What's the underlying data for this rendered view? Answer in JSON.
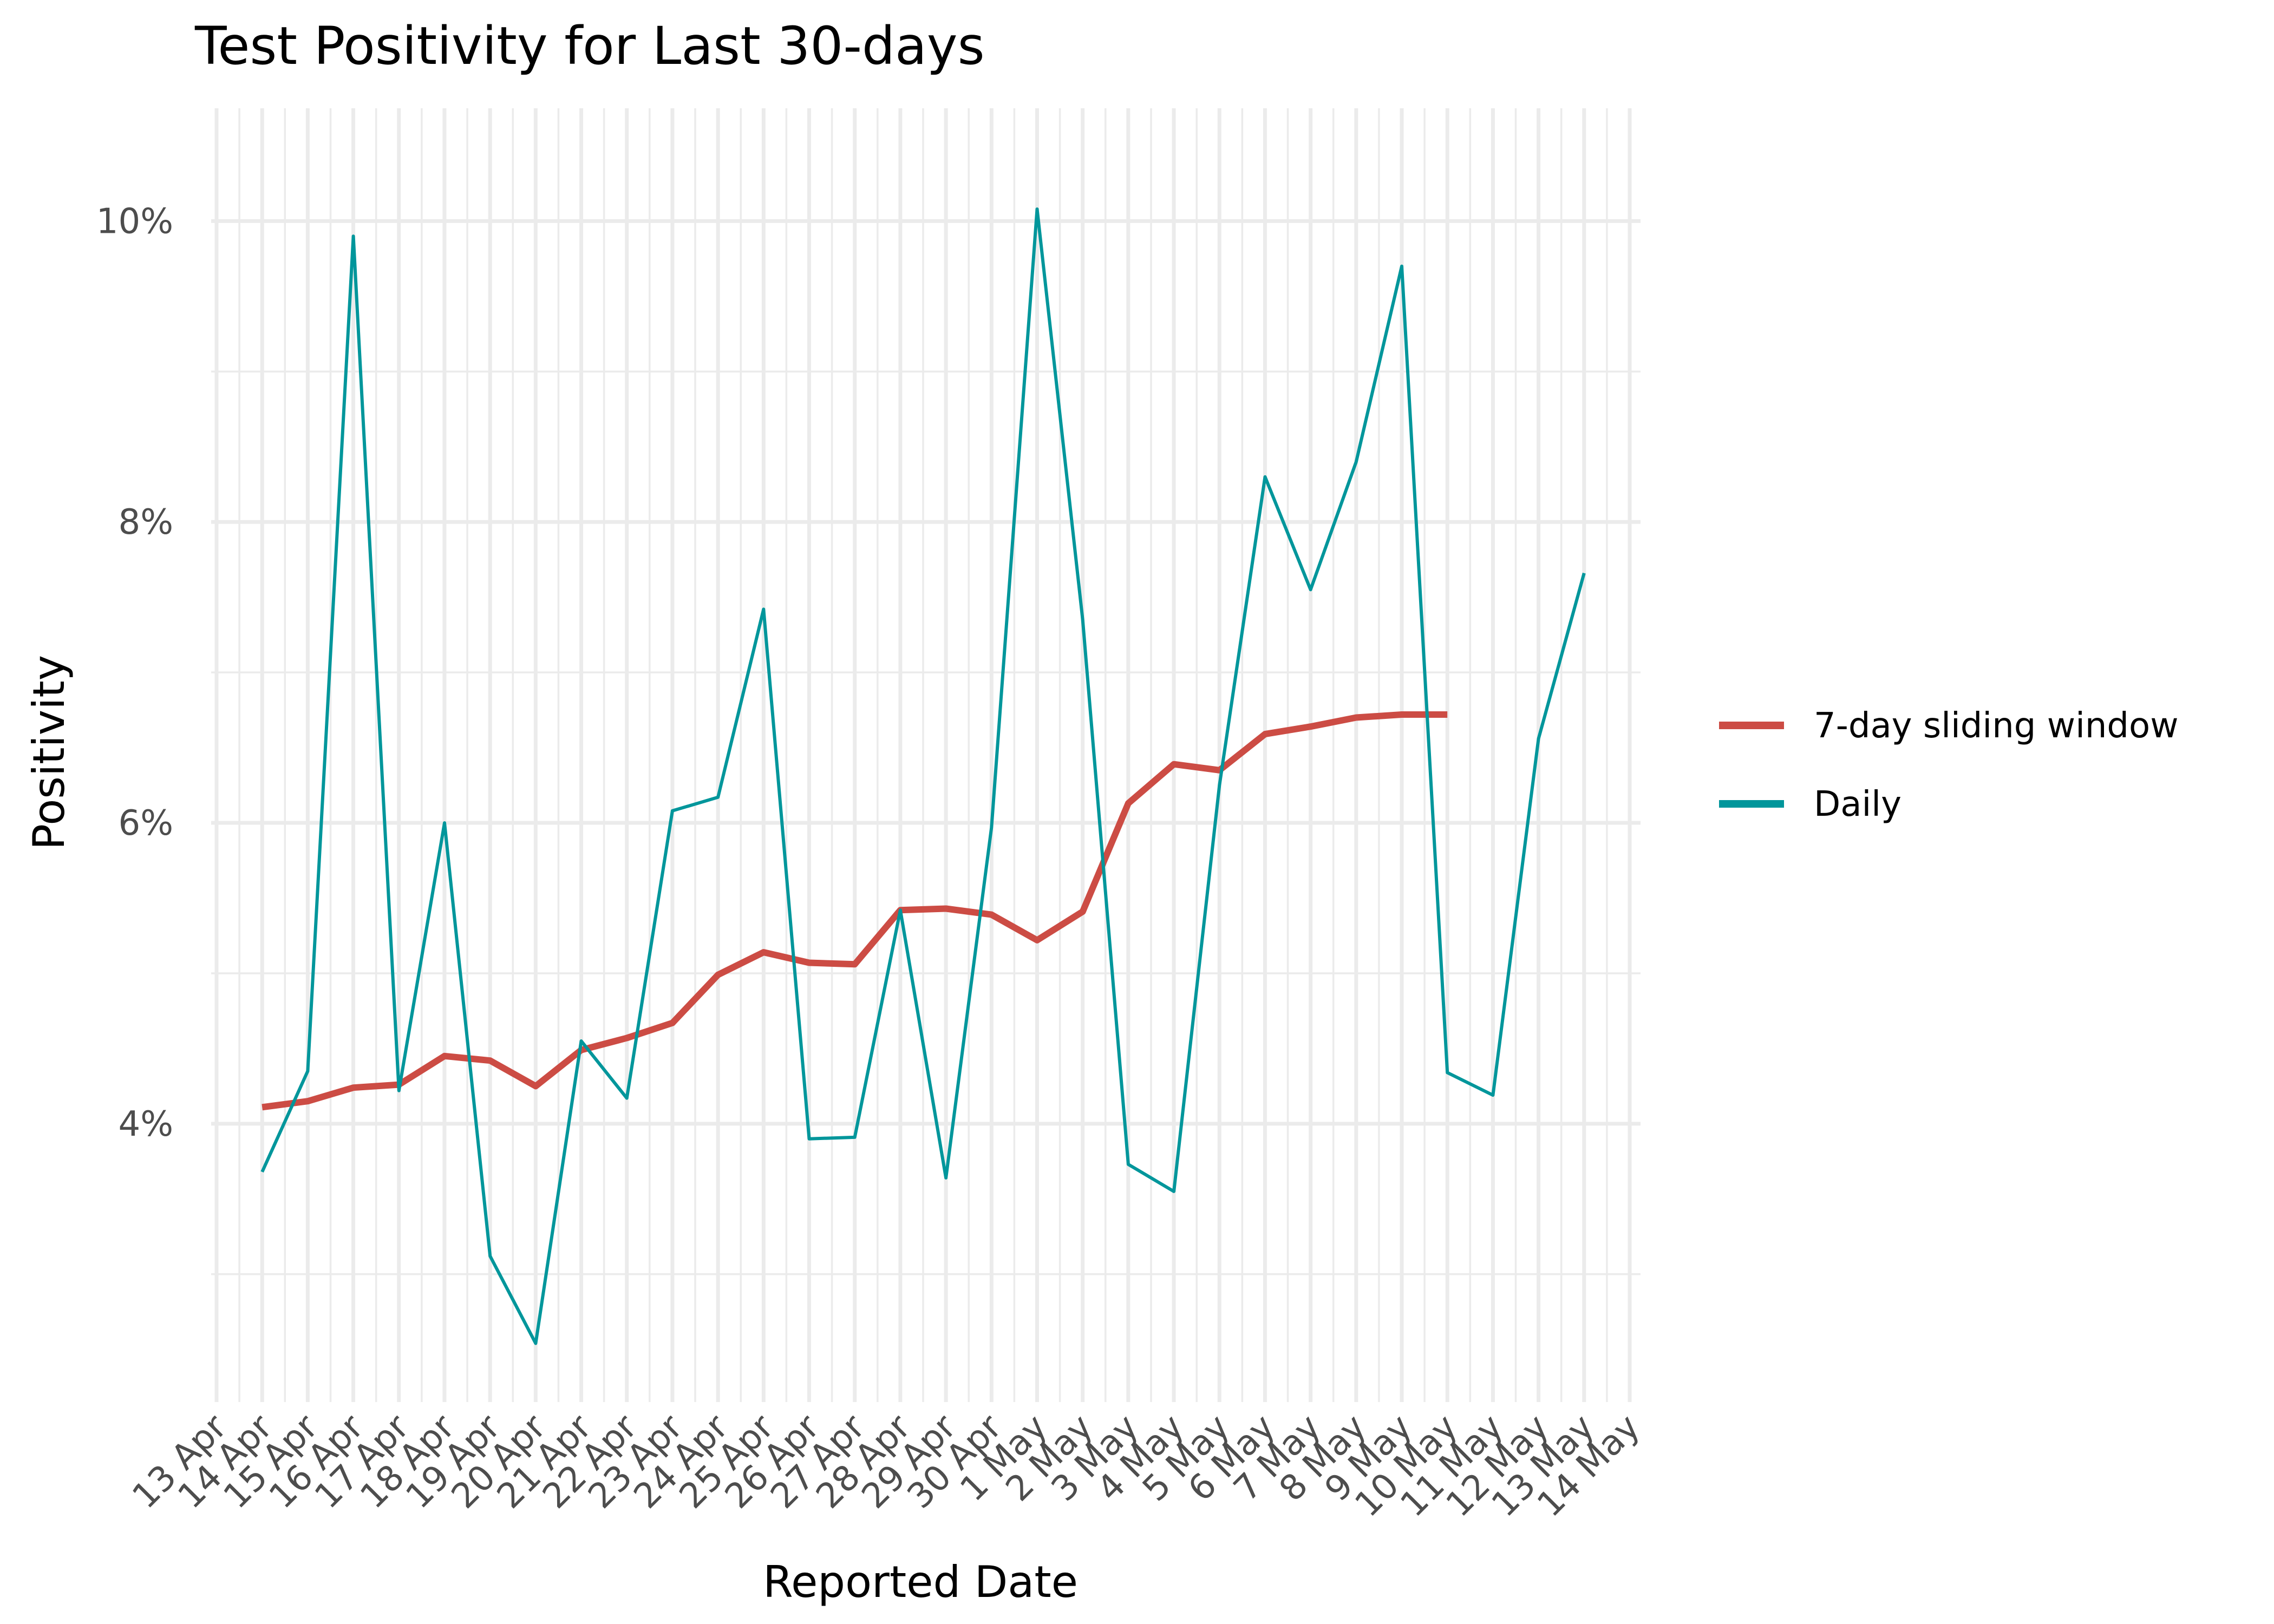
{
  "chart_data": {
    "type": "line",
    "title": "Test Positivity for Last 30-days",
    "xlabel": "Reported Date",
    "ylabel": "Positivity",
    "x": [
      "13 Apr",
      "14 Apr",
      "15 Apr",
      "16 Apr",
      "17 Apr",
      "18 Apr",
      "19 Apr",
      "20 Apr",
      "21 Apr",
      "22 Apr",
      "23 Apr",
      "24 Apr",
      "25 Apr",
      "26 Apr",
      "27 Apr",
      "28 Apr",
      "29 Apr",
      "30 Apr",
      "1 May",
      "2 May",
      "3 May",
      "4 May",
      "5 May",
      "6 May",
      "7 May",
      "8 May",
      "9 May",
      "10 May",
      "11 May",
      "12 May",
      "13 May",
      "14 May"
    ],
    "y_ticks": [
      "4%",
      "6%",
      "8%",
      "10%"
    ],
    "y_tick_values": [
      4,
      6,
      8,
      10
    ],
    "ylim": [
      2.15,
      10.75
    ],
    "grid": true,
    "legend_position": "right",
    "series": [
      {
        "name": "7-day sliding window",
        "color": "#cc4c44",
        "values": [
          null,
          4.11,
          4.15,
          4.24,
          4.26,
          4.45,
          4.42,
          4.25,
          4.49,
          4.57,
          4.67,
          4.99,
          5.14,
          5.07,
          5.06,
          5.42,
          5.43,
          5.39,
          5.22,
          5.41,
          6.13,
          6.39,
          6.35,
          6.59,
          6.64,
          6.7,
          6.72,
          6.72,
          null,
          null,
          null,
          null
        ]
      },
      {
        "name": "Daily",
        "color": "#00969b",
        "values": [
          null,
          3.68,
          4.35,
          9.9,
          4.22,
          6.0,
          3.12,
          2.54,
          4.55,
          4.17,
          6.08,
          6.17,
          7.42,
          3.9,
          3.91,
          5.42,
          3.64,
          5.97,
          10.08,
          7.35,
          3.73,
          3.55,
          6.25,
          8.3,
          7.55,
          8.4,
          9.7,
          4.34,
          4.19,
          6.56,
          7.66,
          null
        ]
      }
    ]
  }
}
